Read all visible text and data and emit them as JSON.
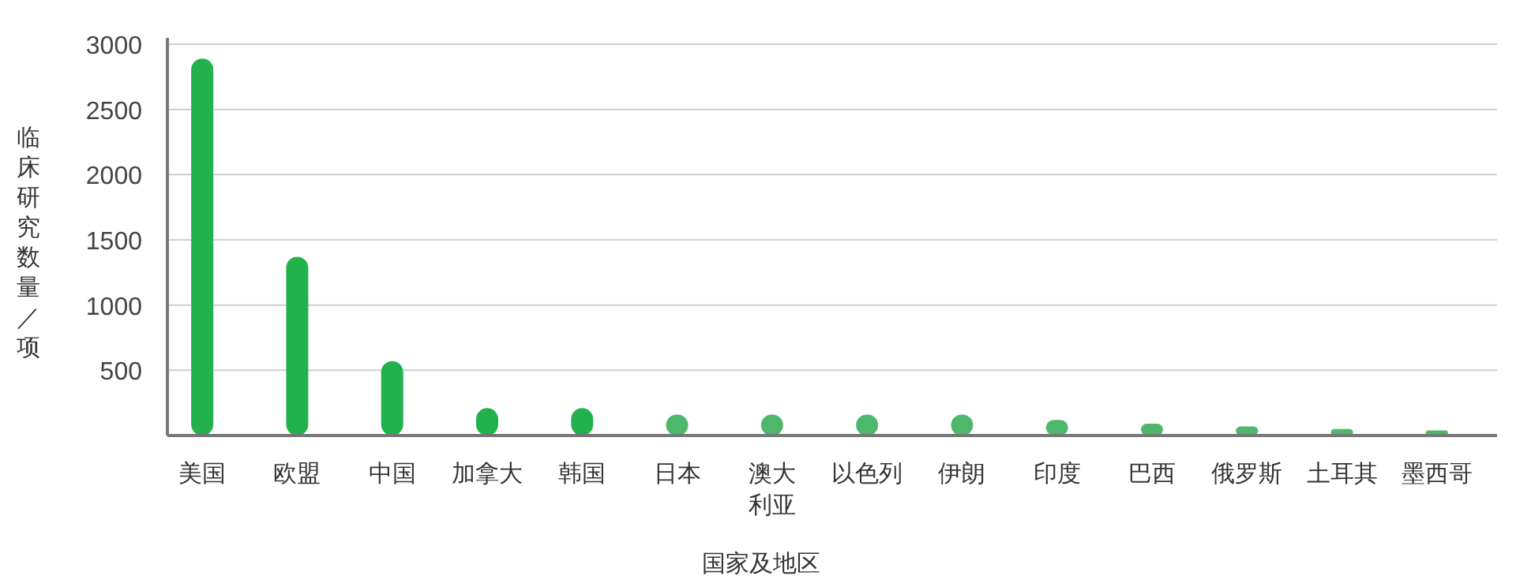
{
  "chart_data": {
    "type": "bar",
    "xlabel": "国家及地区",
    "ylabel": "临床研究数量／项",
    "categories": [
      "美国",
      "欧盟",
      "中国",
      "加拿大",
      "韩国",
      "日本",
      "澳大利亚",
      "以色列",
      "伊朗",
      "印度",
      "巴西",
      "俄罗斯",
      "土耳其",
      "墨西哥"
    ],
    "values": [
      2890,
      1370,
      570,
      210,
      210,
      160,
      160,
      160,
      160,
      120,
      90,
      70,
      50,
      40
    ],
    "colors": [
      "#22b14c",
      "#22b14c",
      "#22b14c",
      "#22b14c",
      "#22b14c",
      "#4db86b",
      "#4db86b",
      "#4db86b",
      "#4db86b",
      "#4db86b",
      "#4db86b",
      "#4db86b",
      "#4db86b",
      "#4db86b"
    ],
    "ylim": [
      0,
      3000
    ],
    "yticks": [
      {
        "value": 0,
        "label": null
      },
      500,
      1000,
      1500,
      2000,
      2500,
      3000
    ],
    "grid": "y"
  }
}
